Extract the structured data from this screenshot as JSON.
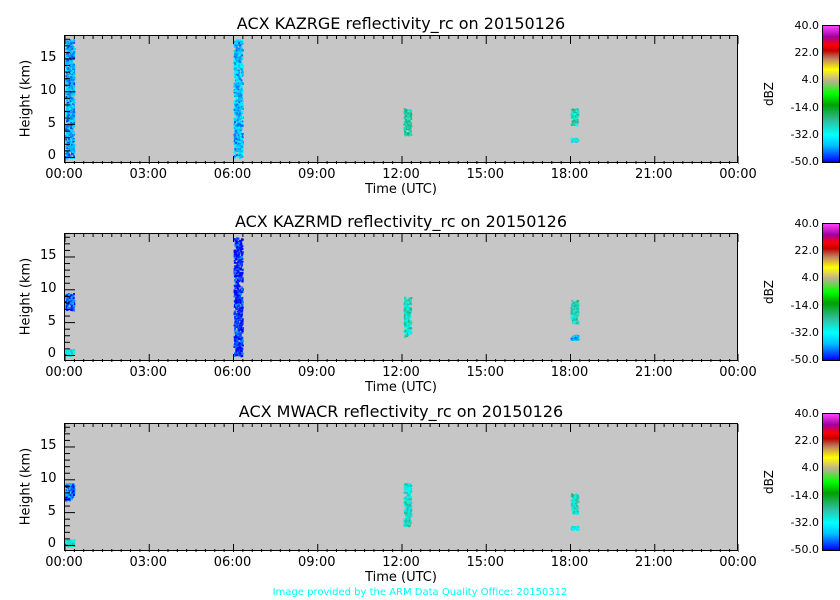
{
  "chart_data": [
    {
      "type": "heatmap",
      "title": "ACX KAZRGE reflectivity_rc on 20150126",
      "xlabel": "Time (UTC)",
      "ylabel": "Height (km)",
      "xlim": [
        0,
        24
      ],
      "ylim": [
        -1,
        18.5
      ],
      "echoes": [
        {
          "t": [
            0,
            0.3
          ],
          "h": [
            0,
            18
          ],
          "dbz": -40
        },
        {
          "t": [
            6,
            6.3
          ],
          "h": [
            0,
            18
          ],
          "dbz": -38
        },
        {
          "t": [
            12.05,
            12.3
          ],
          "h": [
            3.5,
            7.5
          ],
          "dbz": -24
        },
        {
          "t": [
            18,
            18.25
          ],
          "h": [
            5,
            7.5
          ],
          "dbz": -25
        },
        {
          "t": [
            18,
            18.25
          ],
          "h": [
            2.5,
            3
          ],
          "dbz": -30
        }
      ]
    },
    {
      "type": "heatmap",
      "title": "ACX KAZRMD reflectivity_rc on 20150126",
      "xlabel": "Time (UTC)",
      "ylabel": "Height (km)",
      "xlim": [
        0,
        24
      ],
      "ylim": [
        -1,
        18.5
      ],
      "echoes": [
        {
          "t": [
            0,
            0.3
          ],
          "h": [
            7,
            9.5
          ],
          "dbz": -45
        },
        {
          "t": [
            0,
            0.3
          ],
          "h": [
            0,
            1
          ],
          "dbz": -28
        },
        {
          "t": [
            6,
            6.3
          ],
          "h": [
            0,
            18
          ],
          "dbz": -48
        },
        {
          "t": [
            12.05,
            12.3
          ],
          "h": [
            3,
            9
          ],
          "dbz": -26
        },
        {
          "t": [
            18,
            18.25
          ],
          "h": [
            5,
            8.5
          ],
          "dbz": -26
        },
        {
          "t": [
            18,
            18.25
          ],
          "h": [
            2.5,
            3.2
          ],
          "dbz": -40
        }
      ]
    },
    {
      "type": "heatmap",
      "title": "ACX MWACR reflectivity_rc on 20150126",
      "xlabel": "Time (UTC)",
      "ylabel": "Height (km)",
      "xlim": [
        0,
        24
      ],
      "ylim": [
        -1,
        18.5
      ],
      "echoes": [
        {
          "t": [
            0,
            0.3
          ],
          "h": [
            7,
            9.5
          ],
          "dbz": -45
        },
        {
          "t": [
            0,
            0.3
          ],
          "h": [
            0,
            1
          ],
          "dbz": -28
        },
        {
          "t": [
            12.05,
            12.3
          ],
          "h": [
            3,
            9.5
          ],
          "dbz": -28
        },
        {
          "t": [
            18,
            18.25
          ],
          "h": [
            5,
            8
          ],
          "dbz": -27
        },
        {
          "t": [
            18,
            18.25
          ],
          "h": [
            2.5,
            3
          ],
          "dbz": -32
        }
      ]
    }
  ],
  "xticks": [
    "00:00",
    "03:00",
    "06:00",
    "09:00",
    "12:00",
    "15:00",
    "18:00",
    "21:00",
    "00:00"
  ],
  "yticks": [
    "0",
    "5",
    "10",
    "15"
  ],
  "colorbar": {
    "label": "dBZ",
    "ticks": [
      "40.0",
      "22.0",
      "4.0",
      "-14.0",
      "-32.0",
      "-50.0"
    ],
    "range": [
      -50,
      40
    ]
  },
  "footer": "Image provided by the ARM Data Quality Office: 20150312"
}
